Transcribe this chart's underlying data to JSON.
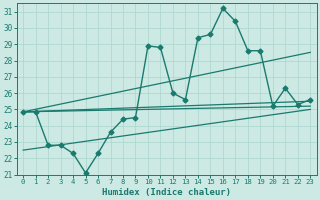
{
  "xlabel": "Humidex (Indice chaleur)",
  "ylabel": "",
  "xlim": [
    -0.5,
    23.5
  ],
  "ylim": [
    21,
    31.5
  ],
  "xticks": [
    0,
    1,
    2,
    3,
    4,
    5,
    6,
    7,
    8,
    9,
    10,
    11,
    12,
    13,
    14,
    15,
    16,
    17,
    18,
    19,
    20,
    21,
    22,
    23
  ],
  "yticks": [
    21,
    22,
    23,
    24,
    25,
    26,
    27,
    28,
    29,
    30,
    31
  ],
  "background_color": "#cce9e4",
  "grid_color": "#b0d8d2",
  "line_color": "#1a7a6e",
  "lines": [
    {
      "x": [
        0,
        1,
        2,
        3,
        4,
        5,
        6,
        7,
        8,
        9,
        10,
        11,
        12,
        13,
        14,
        15,
        16,
        17,
        18,
        19,
        20,
        21,
        22,
        23
      ],
      "y": [
        24.85,
        24.85,
        22.8,
        22.8,
        22.3,
        21.1,
        22.3,
        23.6,
        24.4,
        24.5,
        28.9,
        28.8,
        26.0,
        25.6,
        29.4,
        29.6,
        31.2,
        30.4,
        28.6,
        28.6,
        25.2,
        26.3,
        25.3,
        25.6
      ],
      "marker": "D",
      "marker_size": 2.5,
      "linewidth": 1.0
    },
    {
      "x": [
        0,
        23
      ],
      "y": [
        24.85,
        28.5
      ],
      "marker": null,
      "linewidth": 0.9
    },
    {
      "x": [
        0,
        23
      ],
      "y": [
        24.85,
        25.5
      ],
      "marker": null,
      "linewidth": 0.9
    },
    {
      "x": [
        0,
        23
      ],
      "y": [
        24.85,
        25.2
      ],
      "marker": null,
      "linewidth": 0.9
    },
    {
      "x": [
        0,
        23
      ],
      "y": [
        22.5,
        25.0
      ],
      "marker": null,
      "linewidth": 0.9
    }
  ]
}
